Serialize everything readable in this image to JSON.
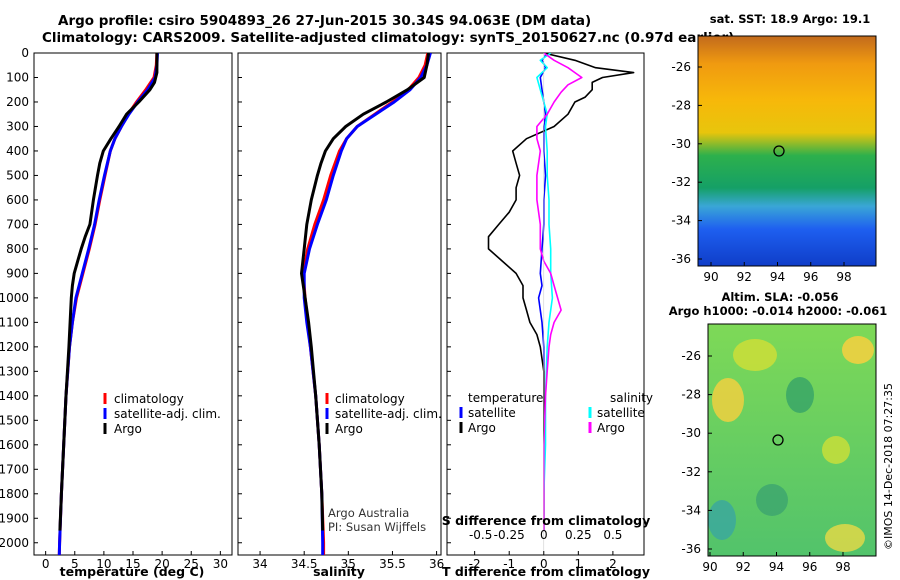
{
  "titles": {
    "line1": "Argo profile: csiro 5904893_26 27-Jun-2015 30.34S 94.063E (DM data)",
    "line2": "Climatology: CARS2009. Satellite-adjusted climatology: synTS_20150627.nc (0.97d earlier)"
  },
  "colors": {
    "clim": "#ff0000",
    "sat": "#0000ff",
    "argo": "#000000",
    "satS": "#00ffff",
    "argoS": "#ff00ff"
  },
  "depth_ticks": [
    "0",
    "100",
    "200",
    "300",
    "400",
    "500",
    "600",
    "700",
    "800",
    "900",
    "1000",
    "1100",
    "1200",
    "1300",
    "1400",
    "1500",
    "1600",
    "1700",
    "1800",
    "1900",
    "2000"
  ],
  "depth_tick_values": [
    0,
    100,
    200,
    300,
    400,
    500,
    600,
    700,
    800,
    900,
    1000,
    1100,
    1200,
    1300,
    1400,
    1500,
    1600,
    1700,
    1800,
    1900,
    2000
  ],
  "legend": {
    "clim": "climatology",
    "sat": "satellite-adj. clim.",
    "argo": "Argo"
  },
  "credits": {
    "l1": "Argo Australia",
    "l2": "PI: Susan Wijffels"
  },
  "diff_legend": {
    "temp_head": "temperature",
    "sal_head": "salinity",
    "temp_sat": "satellite",
    "temp_argo": "Argo",
    "sal_sat": "satellite",
    "sal_argo": "Argo"
  },
  "map_top": {
    "title": "sat. SST: 18.9 Argo: 19.1",
    "lon_ticks": [
      "90",
      "92",
      "94",
      "96",
      "98"
    ],
    "lat_ticks": [
      "-26",
      "-28",
      "-30",
      "-32",
      "-34",
      "-36"
    ]
  },
  "map_bottom": {
    "title1": "Altim. SLA: -0.056",
    "title2": "Argo h1000: -0.014 h2000: -0.061",
    "lon_ticks": [
      "90",
      "92",
      "94",
      "96",
      "98"
    ],
    "lat_ticks": [
      "-26",
      "-28",
      "-30",
      "-32",
      "-34",
      "-36"
    ]
  },
  "stamp": "©IMOS 14-Dec-2018 07:27:35",
  "chart_data": [
    {
      "type": "line",
      "name": "temperature",
      "xlabel": "temperature (deg C)",
      "ylabel": "depth",
      "xlim": [
        -2,
        32
      ],
      "ylim": [
        2050,
        0
      ],
      "x_ticks": [
        "0",
        "5",
        "10",
        "15",
        "20",
        "25",
        "30"
      ],
      "x_tick_values": [
        0,
        5,
        10,
        15,
        20,
        25,
        30
      ],
      "series": [
        {
          "name": "climatology",
          "color": "#ff0000",
          "depth": [
            0,
            50,
            100,
            150,
            200,
            250,
            300,
            350,
            400,
            500,
            600,
            700,
            800,
            900,
            1000,
            1100,
            1200,
            1400,
            1600,
            1800,
            2000,
            2050
          ],
          "values": [
            19.1,
            19.0,
            18.6,
            17.2,
            15.6,
            14.2,
            13.0,
            11.9,
            11.1,
            10.2,
            9.3,
            8.5,
            7.5,
            6.4,
            5.3,
            4.6,
            4.1,
            3.5,
            3.1,
            2.7,
            2.4,
            2.35
          ]
        },
        {
          "name": "satellite-adj. clim.",
          "color": "#0000ff",
          "depth": [
            0,
            50,
            100,
            150,
            200,
            250,
            300,
            350,
            400,
            500,
            600,
            700,
            800,
            900,
            1000,
            1100,
            1200,
            1400,
            1600,
            1800,
            2000,
            2050
          ],
          "values": [
            19.2,
            19.1,
            18.8,
            17.5,
            15.8,
            14.3,
            13.0,
            11.9,
            11.1,
            10.1,
            9.2,
            8.4,
            7.4,
            6.3,
            5.2,
            4.6,
            4.1,
            3.5,
            3.1,
            2.7,
            2.4,
            2.35
          ]
        },
        {
          "name": "Argo",
          "color": "#000000",
          "depth": [
            0,
            40,
            80,
            120,
            150,
            200,
            250,
            300,
            350,
            400,
            450,
            500,
            600,
            700,
            750,
            800,
            850,
            900,
            950,
            1000,
            1050,
            1100,
            1200,
            1400,
            1600,
            1800,
            1950
          ],
          "values": [
            19.1,
            19.1,
            19.1,
            18.7,
            17.9,
            16.0,
            13.9,
            12.6,
            11.2,
            9.9,
            9.3,
            8.9,
            8.2,
            7.6,
            6.8,
            6.1,
            5.5,
            4.9,
            4.6,
            4.4,
            4.3,
            4.2,
            4.0,
            3.5,
            3.1,
            2.7,
            2.45
          ]
        }
      ]
    },
    {
      "type": "line",
      "name": "salinity",
      "xlabel": "salinity",
      "ylabel": "depth",
      "xlim": [
        33.75,
        36.05
      ],
      "ylim": [
        2050,
        0
      ],
      "x_ticks": [
        "34",
        "34.5",
        "35",
        "35.5",
        "36"
      ],
      "x_tick_values": [
        34,
        34.5,
        35,
        35.5,
        36
      ],
      "series": [
        {
          "name": "climatology",
          "color": "#ff0000",
          "depth": [
            0,
            50,
            100,
            150,
            200,
            250,
            300,
            350,
            400,
            500,
            600,
            700,
            800,
            900,
            1000,
            1100,
            1200,
            1400,
            1600,
            1800,
            2000,
            2050
          ],
          "values": [
            35.9,
            35.87,
            35.8,
            35.68,
            35.5,
            35.3,
            35.1,
            34.98,
            34.9,
            34.8,
            34.72,
            34.62,
            34.54,
            34.49,
            34.51,
            34.54,
            34.57,
            34.63,
            34.67,
            34.7,
            34.72,
            34.72
          ]
        },
        {
          "name": "satellite-adj. clim.",
          "color": "#0000ff",
          "depth": [
            0,
            50,
            100,
            150,
            200,
            250,
            300,
            350,
            400,
            500,
            600,
            700,
            800,
            900,
            1000,
            1100,
            1200,
            1400,
            1600,
            1800,
            2000,
            2050
          ],
          "values": [
            35.93,
            35.89,
            35.82,
            35.7,
            35.52,
            35.31,
            35.1,
            34.98,
            34.92,
            34.83,
            34.75,
            34.65,
            34.56,
            34.5,
            34.5,
            34.53,
            34.57,
            34.63,
            34.67,
            34.7,
            34.71,
            34.71
          ]
        },
        {
          "name": "Argo",
          "color": "#000000",
          "depth": [
            0,
            50,
            100,
            150,
            200,
            250,
            300,
            350,
            400,
            450,
            500,
            600,
            700,
            800,
            900,
            950,
            1000,
            1100,
            1200,
            1400,
            1600,
            1800,
            1950
          ],
          "values": [
            35.91,
            35.89,
            35.86,
            35.67,
            35.43,
            35.17,
            34.97,
            34.83,
            34.74,
            34.69,
            34.65,
            34.58,
            34.53,
            34.5,
            34.47,
            34.49,
            34.51,
            34.55,
            34.58,
            34.63,
            34.67,
            34.7,
            34.71
          ]
        }
      ]
    },
    {
      "type": "line",
      "name": "differences",
      "xlabel": "T difference from climatology",
      "x2label": "S difference from climatology",
      "ylabel": "depth",
      "xlim": [
        -2.8,
        2.9
      ],
      "ylim": [
        2050,
        0
      ],
      "x_ticks": [
        "-2",
        "-1",
        "0",
        "1",
        "2"
      ],
      "x_tick_values": [
        -2,
        -1,
        0,
        1,
        2
      ],
      "x2_ticks": [
        "-0.5",
        "-0.25",
        "0",
        "0.25",
        "0.5"
      ],
      "x2_tick_positions": [
        -2,
        -1,
        0,
        1,
        2
      ],
      "series": [
        {
          "name": "temperature satellite",
          "color": "#0000ff",
          "depth": [
            0,
            30,
            60,
            100,
            150,
            200,
            250,
            300,
            400,
            500,
            600,
            700,
            800,
            900,
            950,
            1000,
            1100,
            1200,
            1400,
            1600,
            1800,
            1950
          ],
          "values": [
            0.1,
            -0.05,
            0.05,
            -0.1,
            -0.05,
            0.0,
            0.05,
            0.0,
            0.0,
            0.05,
            0.0,
            0.0,
            -0.05,
            -0.1,
            -0.05,
            -0.15,
            -0.05,
            0.0,
            0.0,
            0.0,
            0.0,
            0.0
          ]
        },
        {
          "name": "temperature Argo",
          "color": "#000000",
          "depth": [
            0,
            30,
            60,
            80,
            100,
            120,
            150,
            180,
            200,
            250,
            300,
            350,
            400,
            450,
            500,
            550,
            600,
            650,
            700,
            750,
            800,
            850,
            900,
            950,
            1000,
            1050,
            1100,
            1150,
            1200,
            1300,
            1400,
            1600,
            1800,
            1950
          ],
          "values": [
            0.0,
            0.9,
            1.5,
            2.6,
            1.7,
            1.4,
            1.4,
            1.2,
            0.9,
            0.7,
            0.3,
            -0.5,
            -0.9,
            -0.8,
            -0.7,
            -0.8,
            -0.8,
            -1.0,
            -1.3,
            -1.6,
            -1.6,
            -1.2,
            -0.8,
            -0.6,
            -0.6,
            -0.5,
            -0.4,
            -0.2,
            -0.1,
            0.0,
            0.0,
            0.0,
            0.0,
            0.0
          ]
        },
        {
          "name": "salinity satellite",
          "color": "#00ffff",
          "depth": [
            0,
            30,
            60,
            100,
            150,
            200,
            250,
            300,
            400,
            500,
            600,
            700,
            800,
            900,
            1000,
            1100,
            1200,
            1400,
            1600,
            1800,
            1950
          ],
          "values": [
            0.2,
            -0.1,
            0.1,
            -0.2,
            -0.1,
            0.0,
            0.1,
            0.05,
            0.1,
            0.1,
            0.15,
            0.15,
            0.2,
            0.2,
            0.25,
            0.15,
            0.1,
            0.05,
            0.05,
            0.0,
            0.0
          ]
        },
        {
          "name": "salinity Argo",
          "color": "#ff00ff",
          "depth": [
            0,
            30,
            60,
            80,
            100,
            130,
            160,
            200,
            250,
            300,
            350,
            400,
            500,
            600,
            700,
            800,
            850,
            900,
            950,
            1000,
            1050,
            1100,
            1150,
            1200,
            1300,
            1400,
            1600,
            1800,
            1950
          ],
          "values": [
            0.0,
            0.3,
            0.7,
            0.9,
            1.1,
            0.7,
            0.5,
            0.3,
            0.1,
            -0.2,
            -0.2,
            -0.1,
            -0.2,
            -0.2,
            -0.1,
            -0.1,
            0.0,
            0.2,
            0.3,
            0.4,
            0.5,
            0.3,
            0.2,
            0.15,
            0.1,
            0.05,
            0.0,
            0.0,
            0.0
          ]
        }
      ]
    }
  ]
}
